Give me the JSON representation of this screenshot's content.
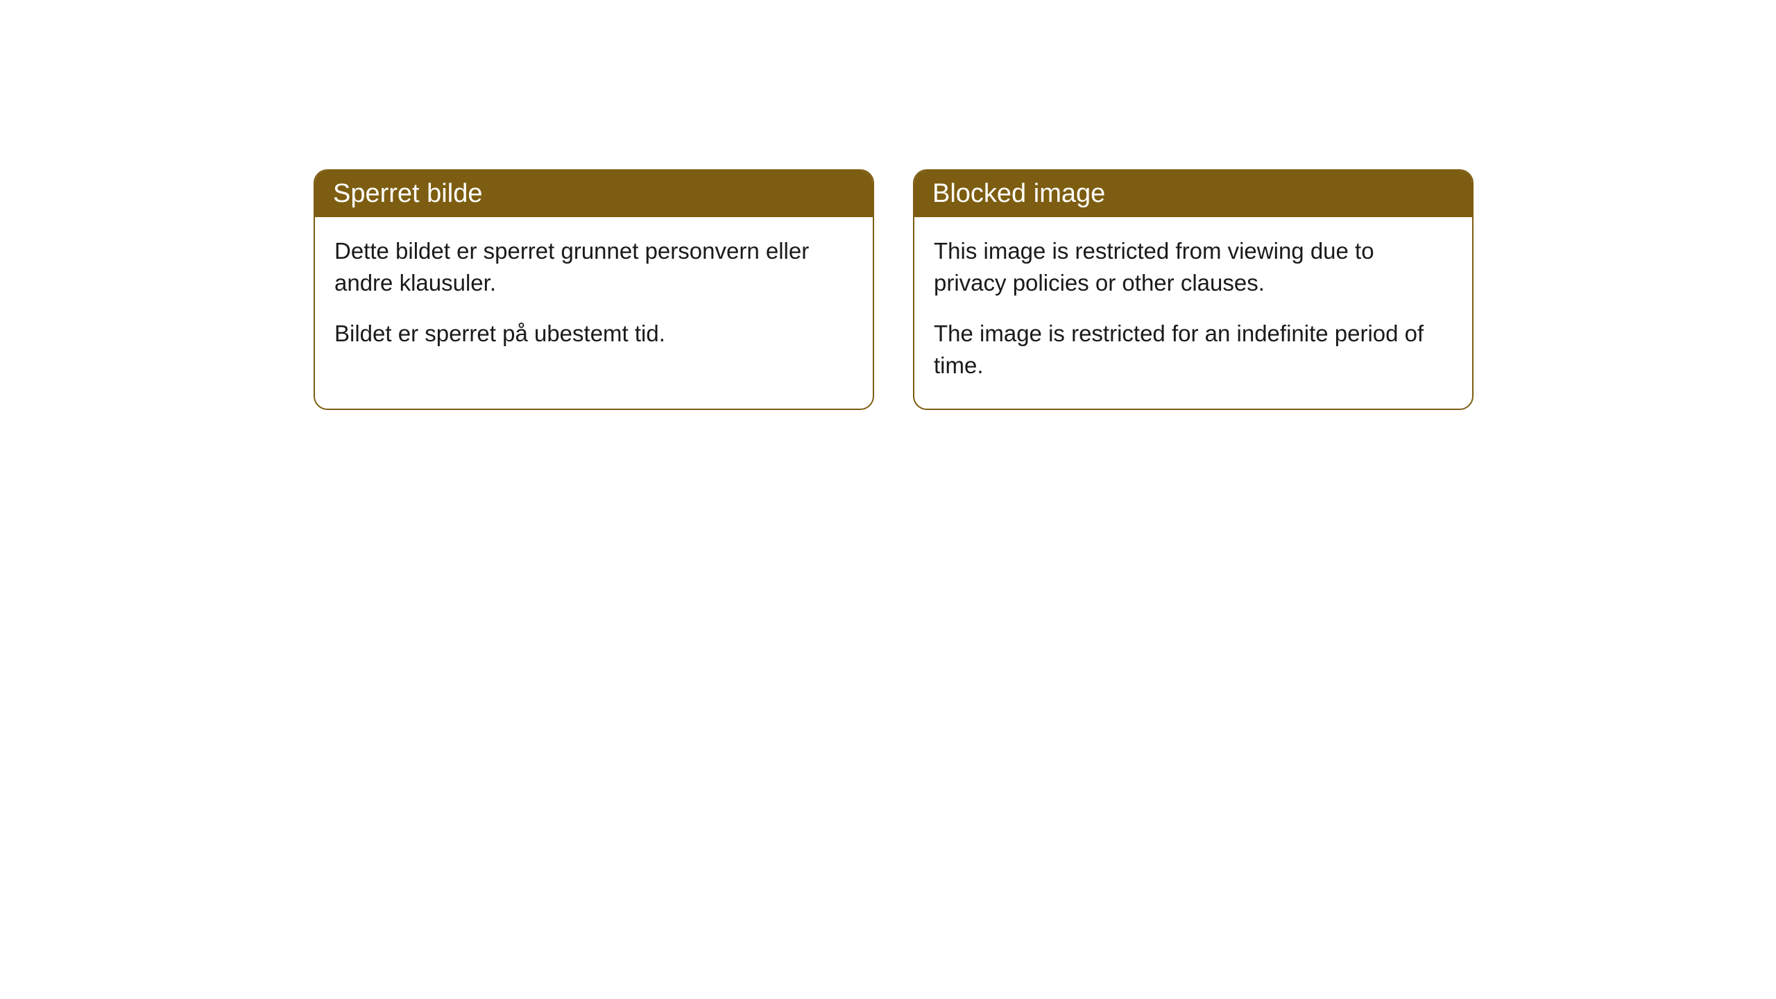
{
  "panels": [
    {
      "title": "Sperret bilde",
      "paragraph1": "Dette bildet er sperret grunnet personvern eller andre klausuler.",
      "paragraph2": "Bildet er sperret på ubestemt tid."
    },
    {
      "title": "Blocked image",
      "paragraph1": "This image is restricted from viewing due to privacy policies or other clauses.",
      "paragraph2": "The image is restricted for an indefinite period of time."
    }
  ],
  "styles": {
    "header_background": "#7d5d11",
    "header_text_color": "#ffffff",
    "body_text_color": "#1a1a1a",
    "border_color": "#7d5d11",
    "border_radius": 20,
    "panel_background": "#ffffff",
    "page_background": "#ffffff",
    "header_fontsize": 38,
    "body_fontsize": 33
  }
}
